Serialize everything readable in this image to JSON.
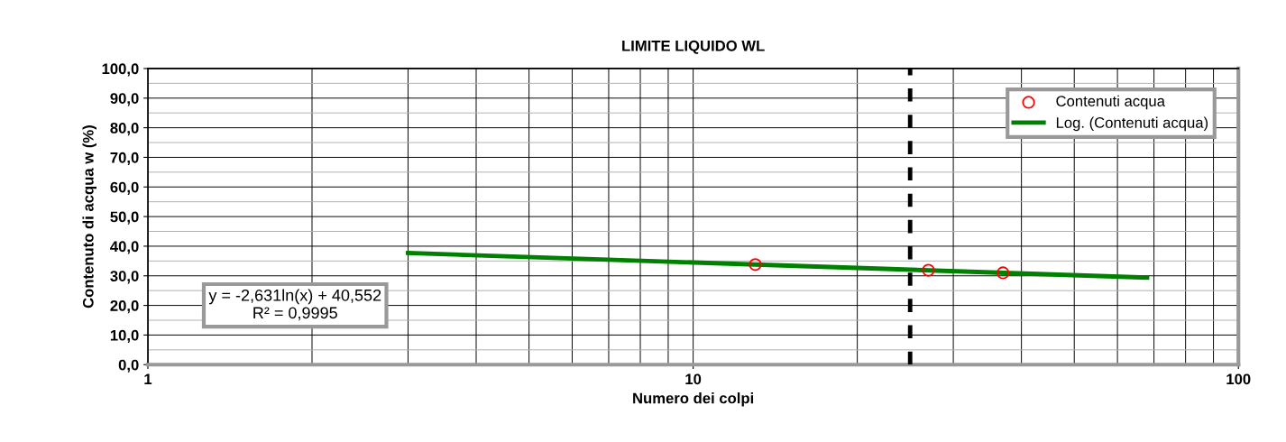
{
  "chart_data": {
    "type": "scatter",
    "title": "LIMITE LIQUIDO WL",
    "xlabel": "Numero dei colpi",
    "ylabel": "Contenuto di acqua w (%)",
    "log": "x",
    "xlim": [
      1,
      100
    ],
    "xticks": [
      1,
      10,
      100
    ],
    "ylim": [
      0,
      100
    ],
    "yticks": [
      {
        "value": 0,
        "label": "0,0"
      },
      {
        "value": 10,
        "label": "10,0"
      },
      {
        "value": 20,
        "label": "20,0"
      },
      {
        "value": 30,
        "label": "30,0"
      },
      {
        "value": 40,
        "label": "40,0"
      },
      {
        "value": 50,
        "label": "50,0"
      },
      {
        "value": 60,
        "label": "60,0"
      },
      {
        "value": 70,
        "label": "70,0"
      },
      {
        "value": 80,
        "label": "80,0"
      },
      {
        "value": 90,
        "label": "90,0"
      },
      {
        "value": 100,
        "label": "100,0"
      }
    ],
    "grid": true,
    "legend": "top right",
    "series": [
      {
        "name": "Contenuti acqua",
        "marker": "circle",
        "color": "#ff0000",
        "x": [
          13,
          27,
          37
        ],
        "values": [
          33.8,
          31.9,
          31.0
        ]
      },
      {
        "name": "Log. (Contenuti acqua)",
        "type": "line",
        "color": "#008000",
        "x": [
          3,
          68
        ],
        "values": [
          37.7,
          29.4
        ]
      }
    ],
    "ref_lines": [
      {
        "axis": "x",
        "value": 25,
        "label": null,
        "color": "#000000",
        "line_style": "dashed"
      }
    ],
    "annotations": [
      "y = -2,631ln(x) + 40,552\nR² = 0,9995"
    ]
  }
}
